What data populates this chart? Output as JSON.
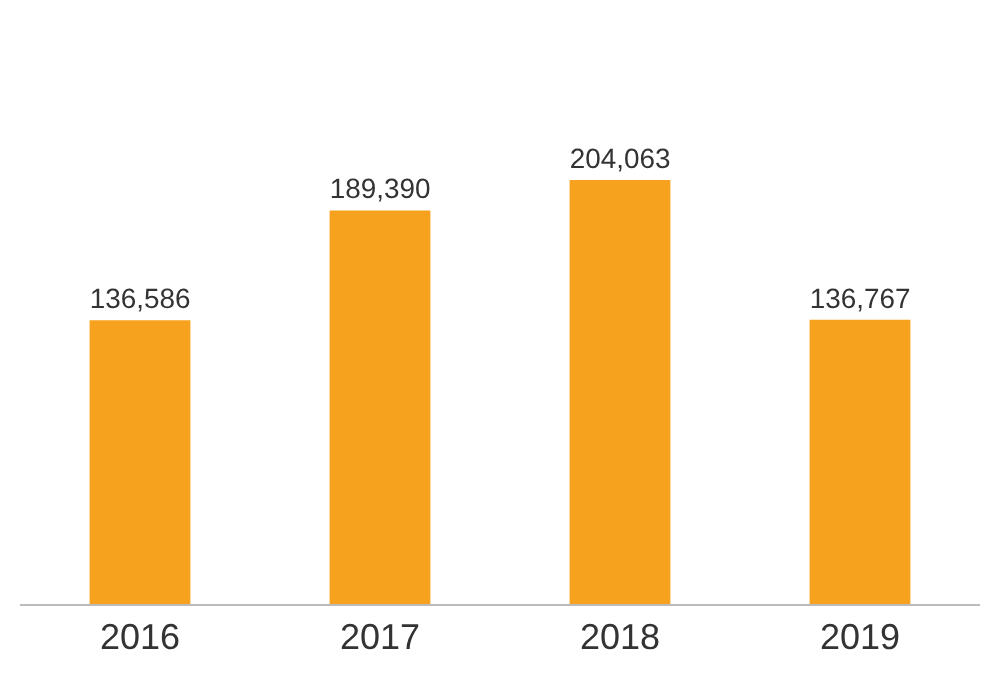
{
  "chart_data": {
    "type": "bar",
    "categories": [
      "2016",
      "2017",
      "2018",
      "2019"
    ],
    "values": [
      136586,
      189390,
      204063,
      136767
    ],
    "color": "#f7a21e",
    "value_labels": [
      "136,586",
      "189,390",
      "204,063",
      "136,767"
    ],
    "grid": false,
    "legend": false
  }
}
